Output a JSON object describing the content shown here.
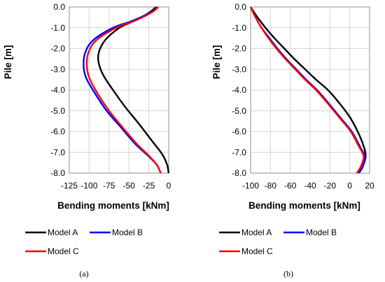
{
  "chart_data": [
    {
      "type": "line",
      "panel_label": "(a)",
      "xlabel": "Bending moments [kNm]",
      "ylabel": "Pile [m]",
      "xlim": [
        -125,
        0
      ],
      "ylim": [
        -8,
        0
      ],
      "x_ticks": [
        -125,
        -100,
        -75,
        -50,
        -25,
        0
      ],
      "y_ticks": [
        0,
        -1,
        -2,
        -3,
        -4,
        -5,
        -6,
        -7,
        -8
      ],
      "x_tick_labels": [
        "-125",
        "-100",
        "-75",
        "-50",
        "-25",
        "0"
      ],
      "y_tick_labels": [
        "0.0",
        "-1.0",
        "-2.0",
        "-3.0",
        "-4.0",
        "-5.0",
        "-6.0",
        "-7.0",
        "-8.0"
      ],
      "grid": true,
      "legend_placement": "bottom",
      "series": [
        {
          "name": "Model A",
          "color": "#000000",
          "x": [
            -16,
            -22,
            -30,
            -45,
            -62,
            -80,
            -88,
            -88,
            -82,
            -70,
            -55,
            -38,
            -22,
            -8,
            -2,
            0
          ],
          "y": [
            0,
            -0.2,
            -0.4,
            -0.7,
            -1.0,
            -1.6,
            -2.2,
            -2.7,
            -3.3,
            -4.0,
            -4.8,
            -5.6,
            -6.4,
            -7.1,
            -7.6,
            -8.0
          ]
        },
        {
          "name": "Model B",
          "color": "#0000ff",
          "x": [
            -14,
            -20,
            -30,
            -48,
            -70,
            -95,
            -105,
            -107,
            -104,
            -92,
            -78,
            -60,
            -42,
            -25,
            -15,
            -10
          ],
          "y": [
            0,
            -0.2,
            -0.4,
            -0.7,
            -1.0,
            -1.6,
            -2.2,
            -2.8,
            -3.4,
            -4.2,
            -5.0,
            -5.8,
            -6.6,
            -7.2,
            -7.6,
            -8.0
          ]
        },
        {
          "name": "Model C",
          "color": "#ff0000",
          "x": [
            -13,
            -19,
            -28,
            -45,
            -66,
            -91,
            -101,
            -103,
            -100,
            -89,
            -75,
            -58,
            -40,
            -24,
            -15,
            -10
          ],
          "y": [
            0,
            -0.2,
            -0.4,
            -0.7,
            -1.0,
            -1.6,
            -2.2,
            -2.8,
            -3.4,
            -4.2,
            -5.0,
            -5.8,
            -6.6,
            -7.2,
            -7.6,
            -8.0
          ]
        }
      ]
    },
    {
      "type": "line",
      "panel_label": "(b)",
      "xlabel": "Bending moments [kNm]",
      "ylabel": "Pile [m]",
      "xlim": [
        -100,
        20
      ],
      "ylim": [
        -8,
        0
      ],
      "x_ticks": [
        -100,
        -80,
        -60,
        -40,
        -20,
        0,
        20
      ],
      "y_ticks": [
        0,
        -1,
        -2,
        -3,
        -4,
        -5,
        -6,
        -7,
        -8
      ],
      "x_tick_labels": [
        "-100",
        "-80",
        "-60",
        "-40",
        "-20",
        "0",
        "20"
      ],
      "y_tick_labels": [
        "0.0",
        "-1.0",
        "-2.0",
        "-3.0",
        "-4.0",
        "-5.0",
        "-6.0",
        "-7.0",
        "-8.0"
      ],
      "grid": true,
      "legend_placement": "bottom",
      "series": [
        {
          "name": "Model A",
          "color": "#000000",
          "x": [
            -100,
            -93,
            -85,
            -76,
            -66,
            -56,
            -45,
            -34,
            -22,
            -11,
            0,
            8,
            14,
            16,
            13,
            9
          ],
          "y": [
            0,
            -0.5,
            -1.0,
            -1.5,
            -2.0,
            -2.5,
            -3.0,
            -3.5,
            -4.0,
            -4.6,
            -5.3,
            -6.0,
            -6.7,
            -7.2,
            -7.7,
            -8.0
          ]
        },
        {
          "name": "Model B",
          "color": "#0000ff",
          "x": [
            -100,
            -95,
            -89,
            -81,
            -73,
            -64,
            -54,
            -44,
            -33,
            -22,
            -10,
            2,
            10,
            15,
            13,
            9
          ],
          "y": [
            0,
            -0.5,
            -1.0,
            -1.5,
            -2.0,
            -2.5,
            -3.0,
            -3.5,
            -4.0,
            -4.6,
            -5.3,
            -6.0,
            -6.7,
            -7.2,
            -7.7,
            -8.0
          ]
        },
        {
          "name": "Model C",
          "color": "#ff0000",
          "x": [
            -100,
            -95,
            -89,
            -82,
            -74,
            -65,
            -55,
            -45,
            -34,
            -23,
            -11,
            1,
            9,
            14,
            11,
            7
          ],
          "y": [
            0,
            -0.5,
            -1.0,
            -1.5,
            -2.0,
            -2.5,
            -3.0,
            -3.5,
            -4.0,
            -4.6,
            -5.3,
            -6.0,
            -6.7,
            -7.2,
            -7.7,
            -8.0
          ]
        }
      ]
    }
  ]
}
